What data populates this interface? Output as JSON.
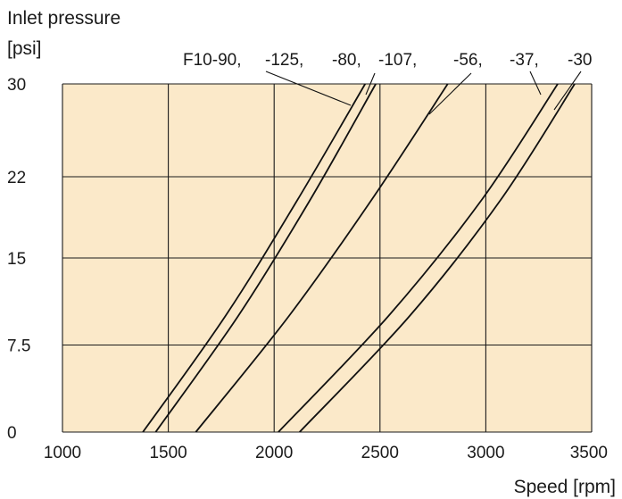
{
  "chart_data": {
    "type": "line",
    "title": "",
    "ylabel": [
      "Inlet pressure",
      "[psi]"
    ],
    "xlabel": "Speed [rpm]",
    "xlim": [
      1000,
      3500
    ],
    "ylim": [
      0,
      30
    ],
    "xticks": [
      1000,
      1500,
      2000,
      2500,
      3000,
      3500
    ],
    "yticks": [
      0,
      7.5,
      15,
      22,
      30
    ],
    "ytick_labels": [
      "0",
      "7.5",
      "15",
      "22",
      "30"
    ],
    "grid": true,
    "series_label_prefix": "F10",
    "series": [
      {
        "name": "F10-90",
        "label": "F10-90,",
        "x": [
          1380,
          1770,
          2110,
          2430
        ],
        "y": [
          0,
          10,
          20,
          30
        ]
      },
      {
        "name": "F10-125",
        "label": "-125,",
        "x": [
          1440,
          1830,
          2170,
          2480
        ],
        "y": [
          0,
          10,
          20,
          30
        ]
      },
      {
        "name": "F10-80",
        "label": "-80,",
        "x": [
          1630,
          2070,
          2460,
          2820
        ],
        "y": [
          0,
          10,
          20,
          30
        ]
      },
      {
        "name": "F10-107",
        "label": "-107,",
        "x": [
          2020,
          2540,
          2980,
          3340
        ],
        "y": [
          0,
          10,
          20,
          30
        ]
      },
      {
        "name": "F10-56",
        "label": "-56,",
        "x": [
          2120,
          2640,
          3070,
          3420
        ],
        "y": [
          0,
          10,
          20,
          30
        ]
      }
    ],
    "extra_labels": [
      "-37,",
      "-30"
    ],
    "colors": {
      "plot_background": "#fbe9c9",
      "line": "#111111",
      "grid": "#1a1a1a"
    }
  }
}
